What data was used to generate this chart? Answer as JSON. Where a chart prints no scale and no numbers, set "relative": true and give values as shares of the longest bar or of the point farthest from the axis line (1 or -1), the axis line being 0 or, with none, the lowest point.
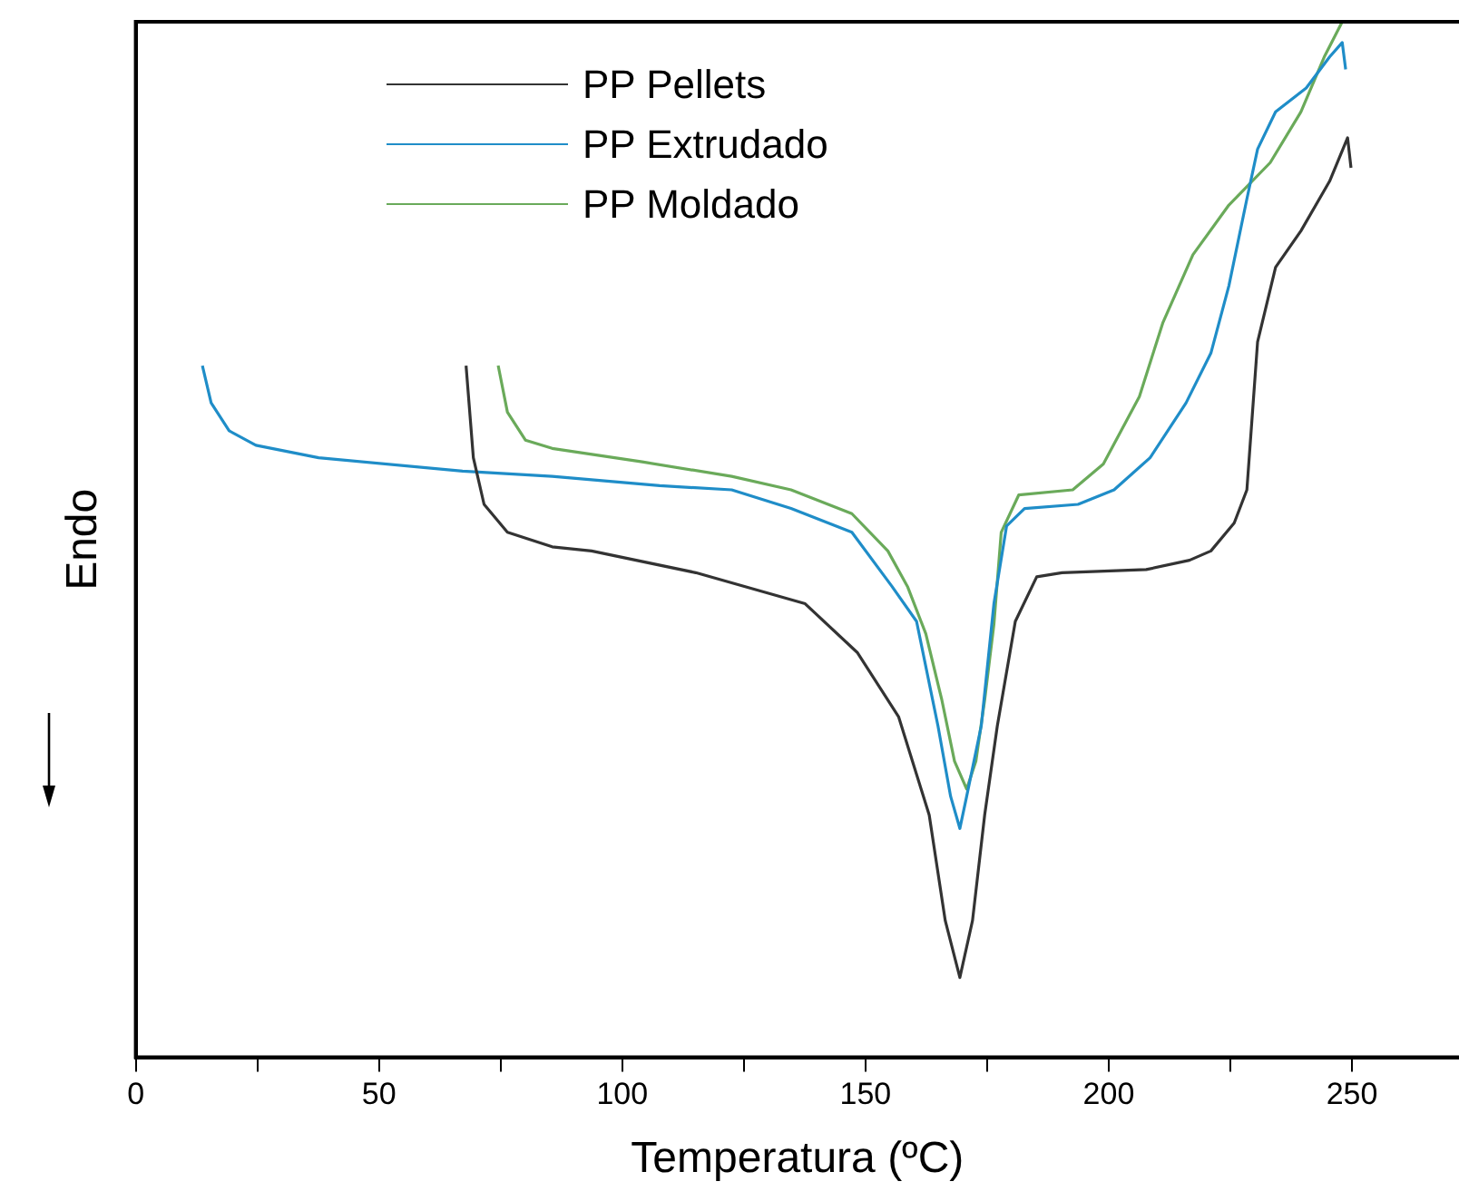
{
  "chart_data": {
    "type": "line",
    "xlabel": "Temperatura (ºC)",
    "ylabel": "Endo",
    "relative": true,
    "legend": "top",
    "tick_labels": "x",
    "marker": "none",
    "line_style": "solid",
    "grid": false,
    "xlim": [
      0,
      272
    ],
    "xticks": [
      0,
      {
        "value": 25,
        "label": null
      },
      50,
      {
        "value": 75,
        "label": null
      },
      100,
      {
        "value": 125,
        "label": null
      },
      150,
      {
        "value": 175,
        "label": null
      },
      200,
      {
        "value": 225,
        "label": null
      },
      250
    ],
    "series": [
      {
        "name": "PP Pellets",
        "color": "#333333",
        "x": [
          67.9,
          69.4,
          71.6,
          76.4,
          85.6,
          93.7,
          115.1,
          137.6,
          148.3,
          156.8,
          163.1,
          166.4,
          169.4,
          172,
          174.5,
          177.1,
          180.8,
          185.2,
          190.4,
          207.7,
          216.6,
          221,
          225.8,
          228.4,
          230.6,
          234.3,
          239.5,
          245.4,
          249.1,
          249.8
        ],
        "values": [
          0.668,
          0.579,
          0.534,
          0.507,
          0.493,
          0.489,
          0.468,
          0.438,
          0.391,
          0.329,
          0.234,
          0.132,
          0.077,
          0.132,
          0.234,
          0.32,
          0.421,
          0.464,
          0.468,
          0.471,
          0.48,
          0.489,
          0.516,
          0.548,
          0.691,
          0.763,
          0.798,
          0.846,
          0.888,
          0.859
        ]
      },
      {
        "name": "PP Extrudado",
        "color": "#1f8dc8",
        "x": [
          13.7,
          15.5,
          19.2,
          24.7,
          37.6,
          67.2,
          85.6,
          107.7,
          122.5,
          134.7,
          147.2,
          155.4,
          160.5,
          164.9,
          167.5,
          169.4,
          170.8,
          173.8,
          176.4,
          179,
          182.7,
          193.7,
          201.1,
          208.5,
          215.9,
          221,
          224.7,
          228.4,
          230.6,
          234.3,
          240.6,
          245.4,
          248,
          248.7
        ],
        "values": [
          0.668,
          0.632,
          0.605,
          0.591,
          0.579,
          0.566,
          0.561,
          0.552,
          0.548,
          0.53,
          0.507,
          0.455,
          0.421,
          0.32,
          0.252,
          0.221,
          0.252,
          0.32,
          0.438,
          0.513,
          0.53,
          0.534,
          0.548,
          0.579,
          0.632,
          0.68,
          0.745,
          0.829,
          0.877,
          0.913,
          0.936,
          0.966,
          0.98,
          0.954
        ]
      },
      {
        "name": "PP Moldado",
        "color": "#6aaa5a",
        "x": [
          74.5,
          76.4,
          80.1,
          85.6,
          104.1,
          122.5,
          134.7,
          147.2,
          154.6,
          158.7,
          162.4,
          165.7,
          168.3,
          170.8,
          172.7,
          174.5,
          176.4,
          177.9,
          181.5,
          192.6,
          198.9,
          206.3,
          211.1,
          217.3,
          224.7,
          233.2,
          239.5,
          244.3,
          248
        ],
        "values": [
          0.668,
          0.623,
          0.596,
          0.588,
          0.575,
          0.561,
          0.548,
          0.525,
          0.489,
          0.454,
          0.409,
          0.345,
          0.286,
          0.259,
          0.286,
          0.345,
          0.418,
          0.507,
          0.543,
          0.548,
          0.573,
          0.638,
          0.709,
          0.775,
          0.823,
          0.864,
          0.913,
          0.966,
          1
        ]
      }
    ]
  }
}
